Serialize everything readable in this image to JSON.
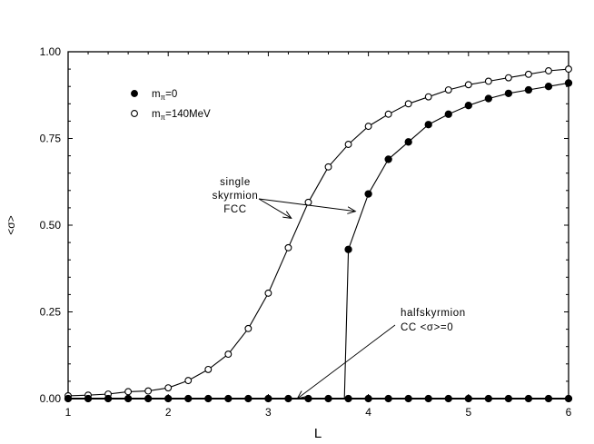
{
  "chart_data": {
    "type": "line",
    "title": "",
    "xlabel": "L",
    "ylabel": "<σ>",
    "xlim": [
      1,
      6
    ],
    "ylim": [
      0,
      1.0
    ],
    "grid": false,
    "x_ticks": [
      "1",
      "2",
      "3",
      "4",
      "5",
      "6"
    ],
    "y_ticks": [
      "0.00",
      "0.25",
      "0.50",
      "0.75",
      "1.00"
    ],
    "legend_position": "upper-left inside",
    "legend": [
      {
        "marker": "filled-circle",
        "label": "m",
        "subscript": "π",
        "suffix": "=0"
      },
      {
        "marker": "open-circle",
        "label": "m",
        "subscript": "π",
        "suffix": "=140MeV"
      }
    ],
    "series": [
      {
        "name": "mπ=0 (single skyrmion FCC)",
        "marker": "filled-circle",
        "x": [
          3.76,
          3.8,
          4.0,
          4.2,
          4.4,
          4.6,
          4.8,
          5.0,
          5.2,
          5.4,
          5.6,
          5.8,
          6.0
        ],
        "y": [
          0.0,
          0.43,
          0.59,
          0.69,
          0.74,
          0.79,
          0.82,
          0.845,
          0.865,
          0.88,
          0.89,
          0.9,
          0.91
        ],
        "marker_mask": [
          false,
          true,
          true,
          true,
          true,
          true,
          true,
          true,
          true,
          true,
          true,
          true,
          true
        ]
      },
      {
        "name": "mπ=140MeV (single skyrmion FCC)",
        "marker": "open-circle",
        "x": [
          1.0,
          1.2,
          1.4,
          1.6,
          1.8,
          2.0,
          2.2,
          2.4,
          2.6,
          2.8,
          3.0,
          3.2,
          3.4,
          3.6,
          3.8,
          4.0,
          4.2,
          4.4,
          4.6,
          4.8,
          5.0,
          5.2,
          5.4,
          5.6,
          5.8,
          6.0
        ],
        "y": [
          0.008,
          0.01,
          0.013,
          0.02,
          0.022,
          0.031,
          0.052,
          0.084,
          0.128,
          0.202,
          0.304,
          0.435,
          0.566,
          0.668,
          0.733,
          0.785,
          0.82,
          0.85,
          0.87,
          0.89,
          0.905,
          0.915,
          0.925,
          0.935,
          0.945,
          0.95
        ]
      },
      {
        "name": "half-skyrmion CC <σ>=0",
        "marker": "filled-circle",
        "x": [
          1.0,
          1.2,
          1.4,
          1.6,
          1.8,
          2.0,
          2.2,
          2.4,
          2.6,
          2.8,
          3.0,
          3.2,
          3.4,
          3.6,
          3.8,
          4.0,
          4.2,
          4.4,
          4.6,
          4.8,
          5.0,
          5.2,
          5.4,
          5.6,
          5.8,
          6.0
        ],
        "y": [
          0,
          0,
          0,
          0,
          0,
          0,
          0,
          0,
          0,
          0,
          0,
          0,
          0,
          0,
          0,
          0,
          0,
          0,
          0,
          0,
          0,
          0,
          0,
          0,
          0,
          0
        ]
      }
    ],
    "annotations": [
      {
        "lines": [
          "single",
          "skyrmion",
          "FCC"
        ],
        "arrows_to": [
          [
            3.23,
            0.52
          ],
          [
            3.87,
            0.54
          ]
        ]
      },
      {
        "lines": [
          "halfskyrmion",
          "CC  <σ>=0"
        ],
        "arrows_to": [
          [
            3.29,
            0.0
          ]
        ]
      }
    ]
  }
}
